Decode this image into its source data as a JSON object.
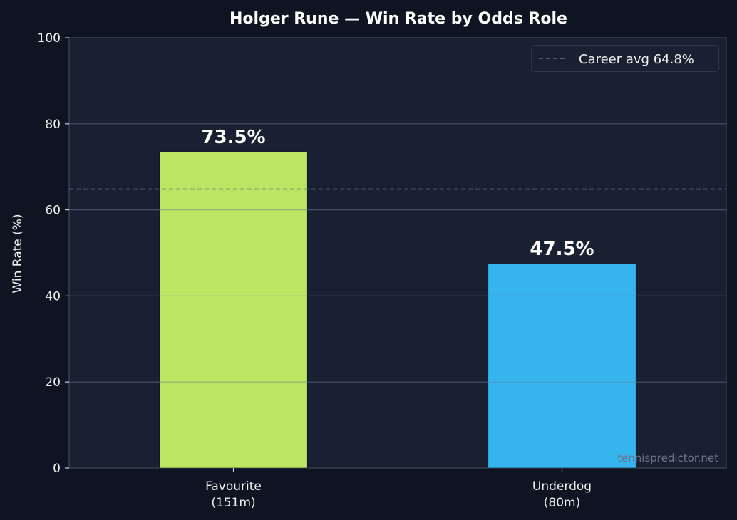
{
  "colors": {
    "page_bg": "#0e1421",
    "plot_bg": "#182032",
    "plot_border": "#3a4658",
    "grid": "#2a3446",
    "favourite_bar": "#c4f066",
    "underdog_bar": "#38bdf8",
    "avg_line": "#64748b"
  },
  "chart_data": {
    "type": "bar",
    "title": "Holger Rune — Win Rate by Odds Role",
    "xlabel": "",
    "ylabel": "Win Rate (%)",
    "ylim": [
      0,
      100
    ],
    "yticks": [
      0,
      20,
      40,
      60,
      80,
      100
    ],
    "grid": true,
    "categories": [
      {
        "line1": "Favourite",
        "line2": "(151m)"
      },
      {
        "line1": "Underdog",
        "line2": "(80m)"
      }
    ],
    "values": [
      73.5,
      47.5
    ],
    "value_labels": [
      "73.5%",
      "47.5%"
    ],
    "reference_line": {
      "value": 64.8,
      "label": "Career avg 64.8%",
      "style": "dashed"
    },
    "legend_position": "top-right",
    "watermark": "tennispredictor.net"
  }
}
